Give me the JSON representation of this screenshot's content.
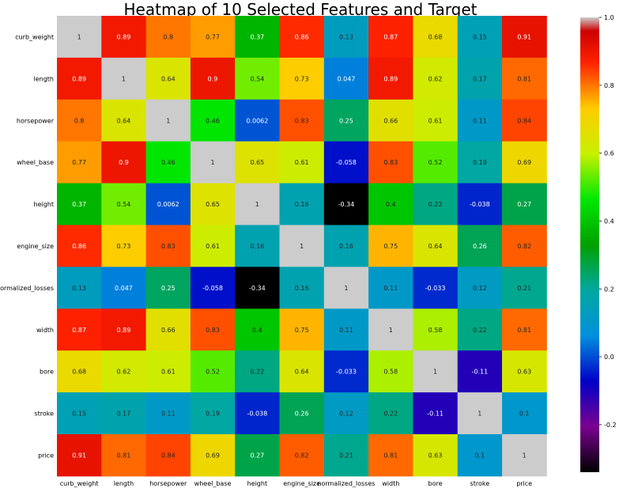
{
  "chart_data": {
    "type": "heatmap",
    "title": "Heatmap of 10 Selected Features and Target",
    "rows": [
      "curb_weight",
      "length",
      "horsepower",
      "wheel_base",
      "height",
      "engine_size",
      "normalized_losses",
      "width",
      "bore",
      "stroke",
      "price"
    ],
    "columns": [
      "curb_weight",
      "length",
      "horsepower",
      "wheel_base",
      "height",
      "engine_size",
      "normalized_losses",
      "width",
      "bore",
      "stroke",
      "price"
    ],
    "values": [
      [
        "1",
        "0.89",
        "0.8",
        "0.77",
        "0.37",
        "0.86",
        "0.13",
        "0.87",
        "0.68",
        "0.15",
        "0.91"
      ],
      [
        "0.89",
        "1",
        "0.64",
        "0.9",
        "0.54",
        "0.73",
        "0.047",
        "0.89",
        "0.62",
        "0.17",
        "0.81"
      ],
      [
        "0.8",
        "0.64",
        "1",
        "0.46",
        "0.0062",
        "0.83",
        "0.25",
        "0.66",
        "0.61",
        "0.11",
        "0.84"
      ],
      [
        "0.77",
        "0.9",
        "0.46",
        "1",
        "0.65",
        "0.61",
        "-0.058",
        "0.83",
        "0.52",
        "0.19",
        "0.69"
      ],
      [
        "0.37",
        "0.54",
        "0.0062",
        "0.65",
        "1",
        "0.16",
        "-0.34",
        "0.4",
        "0.22",
        "-0.038",
        "0.27"
      ],
      [
        "0.86",
        "0.73",
        "0.83",
        "0.61",
        "0.16",
        "1",
        "0.16",
        "0.75",
        "0.64",
        "0.26",
        "0.82"
      ],
      [
        "0.13",
        "0.047",
        "0.25",
        "-0.058",
        "-0.34",
        "0.16",
        "1",
        "0.11",
        "-0.033",
        "0.12",
        "0.21"
      ],
      [
        "0.87",
        "0.89",
        "0.66",
        "0.83",
        "0.4",
        "0.75",
        "0.11",
        "1",
        "0.58",
        "0.22",
        "0.81"
      ],
      [
        "0.68",
        "0.62",
        "0.61",
        "0.52",
        "0.22",
        "0.64",
        "-0.033",
        "0.58",
        "1",
        "-0.11",
        "0.63"
      ],
      [
        "0.15",
        "0.17",
        "0.11",
        "0.19",
        "-0.038",
        "0.26",
        "0.12",
        "0.22",
        "-0.11",
        "1",
        "0.1"
      ],
      [
        "0.91",
        "0.81",
        "0.84",
        "0.69",
        "0.27",
        "0.82",
        "0.21",
        "0.81",
        "0.63",
        "0.1",
        "1"
      ]
    ],
    "colorbar": {
      "range": [
        -0.34,
        1.0
      ],
      "ticks": [
        "1.0",
        "0.8",
        "0.6",
        "0.4",
        "0.2",
        "0.0",
        "-0.2"
      ],
      "colormap": "nipy_spectral"
    }
  }
}
